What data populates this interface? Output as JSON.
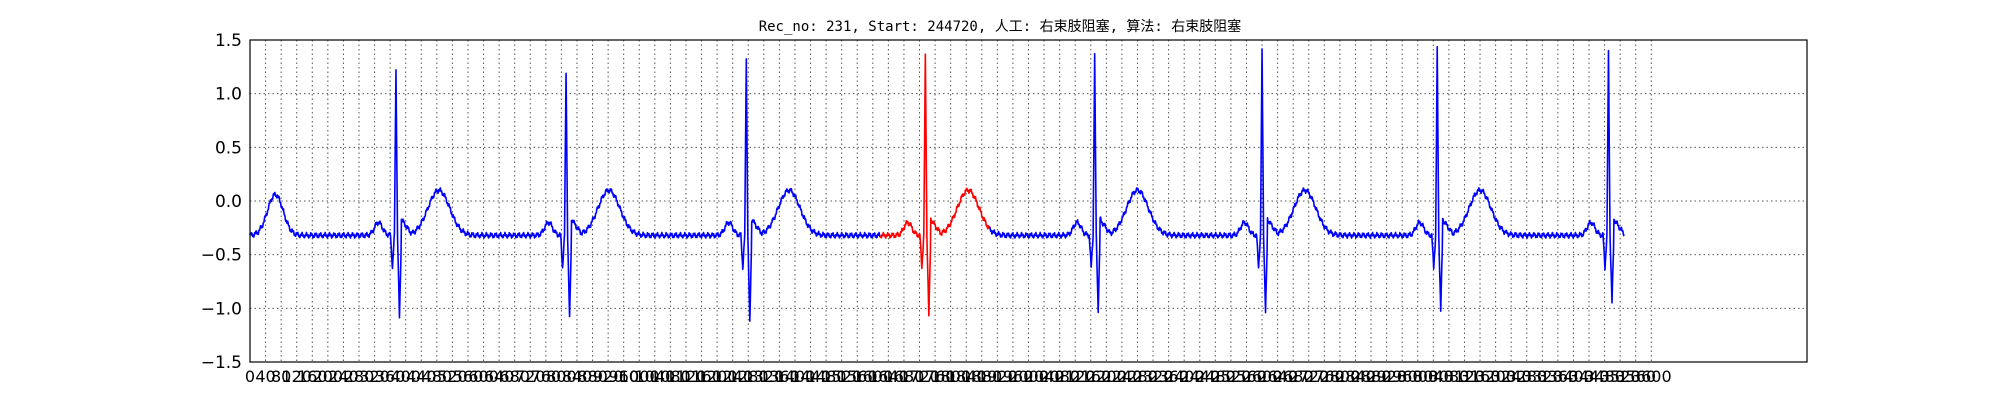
{
  "chart_data": {
    "type": "line",
    "title": "Rec_no: 231, Start: 244720, 人工: 右束肢阻塞, 算法: 右束肢阻塞",
    "xlabel": "",
    "ylabel": "",
    "xlim": [
      0,
      4000
    ],
    "ylim": [
      -1.5,
      1.5
    ],
    "yticks": [
      -1.5,
      -1.0,
      -0.5,
      0.0,
      0.5,
      1.0,
      1.5
    ],
    "ytick_labels": [
      "−1.5",
      "−1.0",
      "−0.5",
      "0.0",
      "0.5",
      "1.0",
      "1.5"
    ],
    "xtick_step": 40,
    "xtick_max": 3600,
    "grid": true,
    "colors": {
      "normal": "#0000ff",
      "highlight": "#ff0000"
    },
    "segments": [
      {
        "color": "#0000ff",
        "points": [
          [
            0,
            -0.26
          ],
          [
            20,
            -0.22
          ],
          [
            40,
            -0.12
          ],
          [
            55,
            0.05
          ],
          [
            70,
            0.1
          ],
          [
            82,
            0.08
          ],
          [
            95,
            -0.05
          ],
          [
            110,
            -0.25
          ],
          [
            125,
            -0.3
          ],
          [
            150,
            -0.31
          ],
          [
            200,
            -0.33
          ],
          [
            250,
            -0.35
          ],
          [
            300,
            -0.37
          ],
          [
            325,
            -0.36
          ],
          [
            340,
            -0.3
          ],
          [
            352,
            -0.22
          ],
          [
            364,
            -0.3
          ],
          [
            378,
            -0.38
          ],
          [
            360,
            -0.4
          ],
          [
            365,
            -0.4
          ],
          [
            366,
            -0.42
          ],
          [
            364,
            -0.42
          ],
          [
            365,
            -0.43
          ],
          [
            366,
            -0.45
          ],
          [
            366,
            -0.46
          ],
          [
            366,
            -0.49
          ],
          [
            366,
            -0.52
          ],
          [
            366,
            -0.53
          ],
          [
            367,
            -0.56
          ],
          [
            366,
            -0.58
          ],
          [
            366,
            -0.61
          ],
          [
            366,
            -0.64
          ],
          [
            366,
            -0.64
          ]
        ]
      }
    ],
    "beat_template_note": "",
    "beats": [
      {
        "x": 375,
        "peak": 1.25,
        "trough": -1.07,
        "color": "#0000ff"
      },
      {
        "x": 812,
        "peak": 1.22,
        "trough": -1.08,
        "color": "#0000ff"
      },
      {
        "x": 1275,
        "peak": 1.35,
        "trough": -1.12,
        "color": "#0000ff"
      },
      {
        "x": 1735,
        "peak": 1.37,
        "trough": -1.05,
        "color": "#ff0000"
      },
      {
        "x": 2170,
        "peak": 1.38,
        "trough": -1.0,
        "color": "#0000ff"
      },
      {
        "x": 2600,
        "peak": 1.42,
        "trough": -1.02,
        "color": "#0000ff"
      },
      {
        "x": 3050,
        "peak": 1.43,
        "trough": -1.0,
        "color": "#0000ff"
      },
      {
        "x": 3490,
        "peak": 1.4,
        "trough": -0.93,
        "color": "#0000ff"
      }
    ],
    "red_range": [
      1620,
      1900
    ],
    "end_x": 3530
  }
}
